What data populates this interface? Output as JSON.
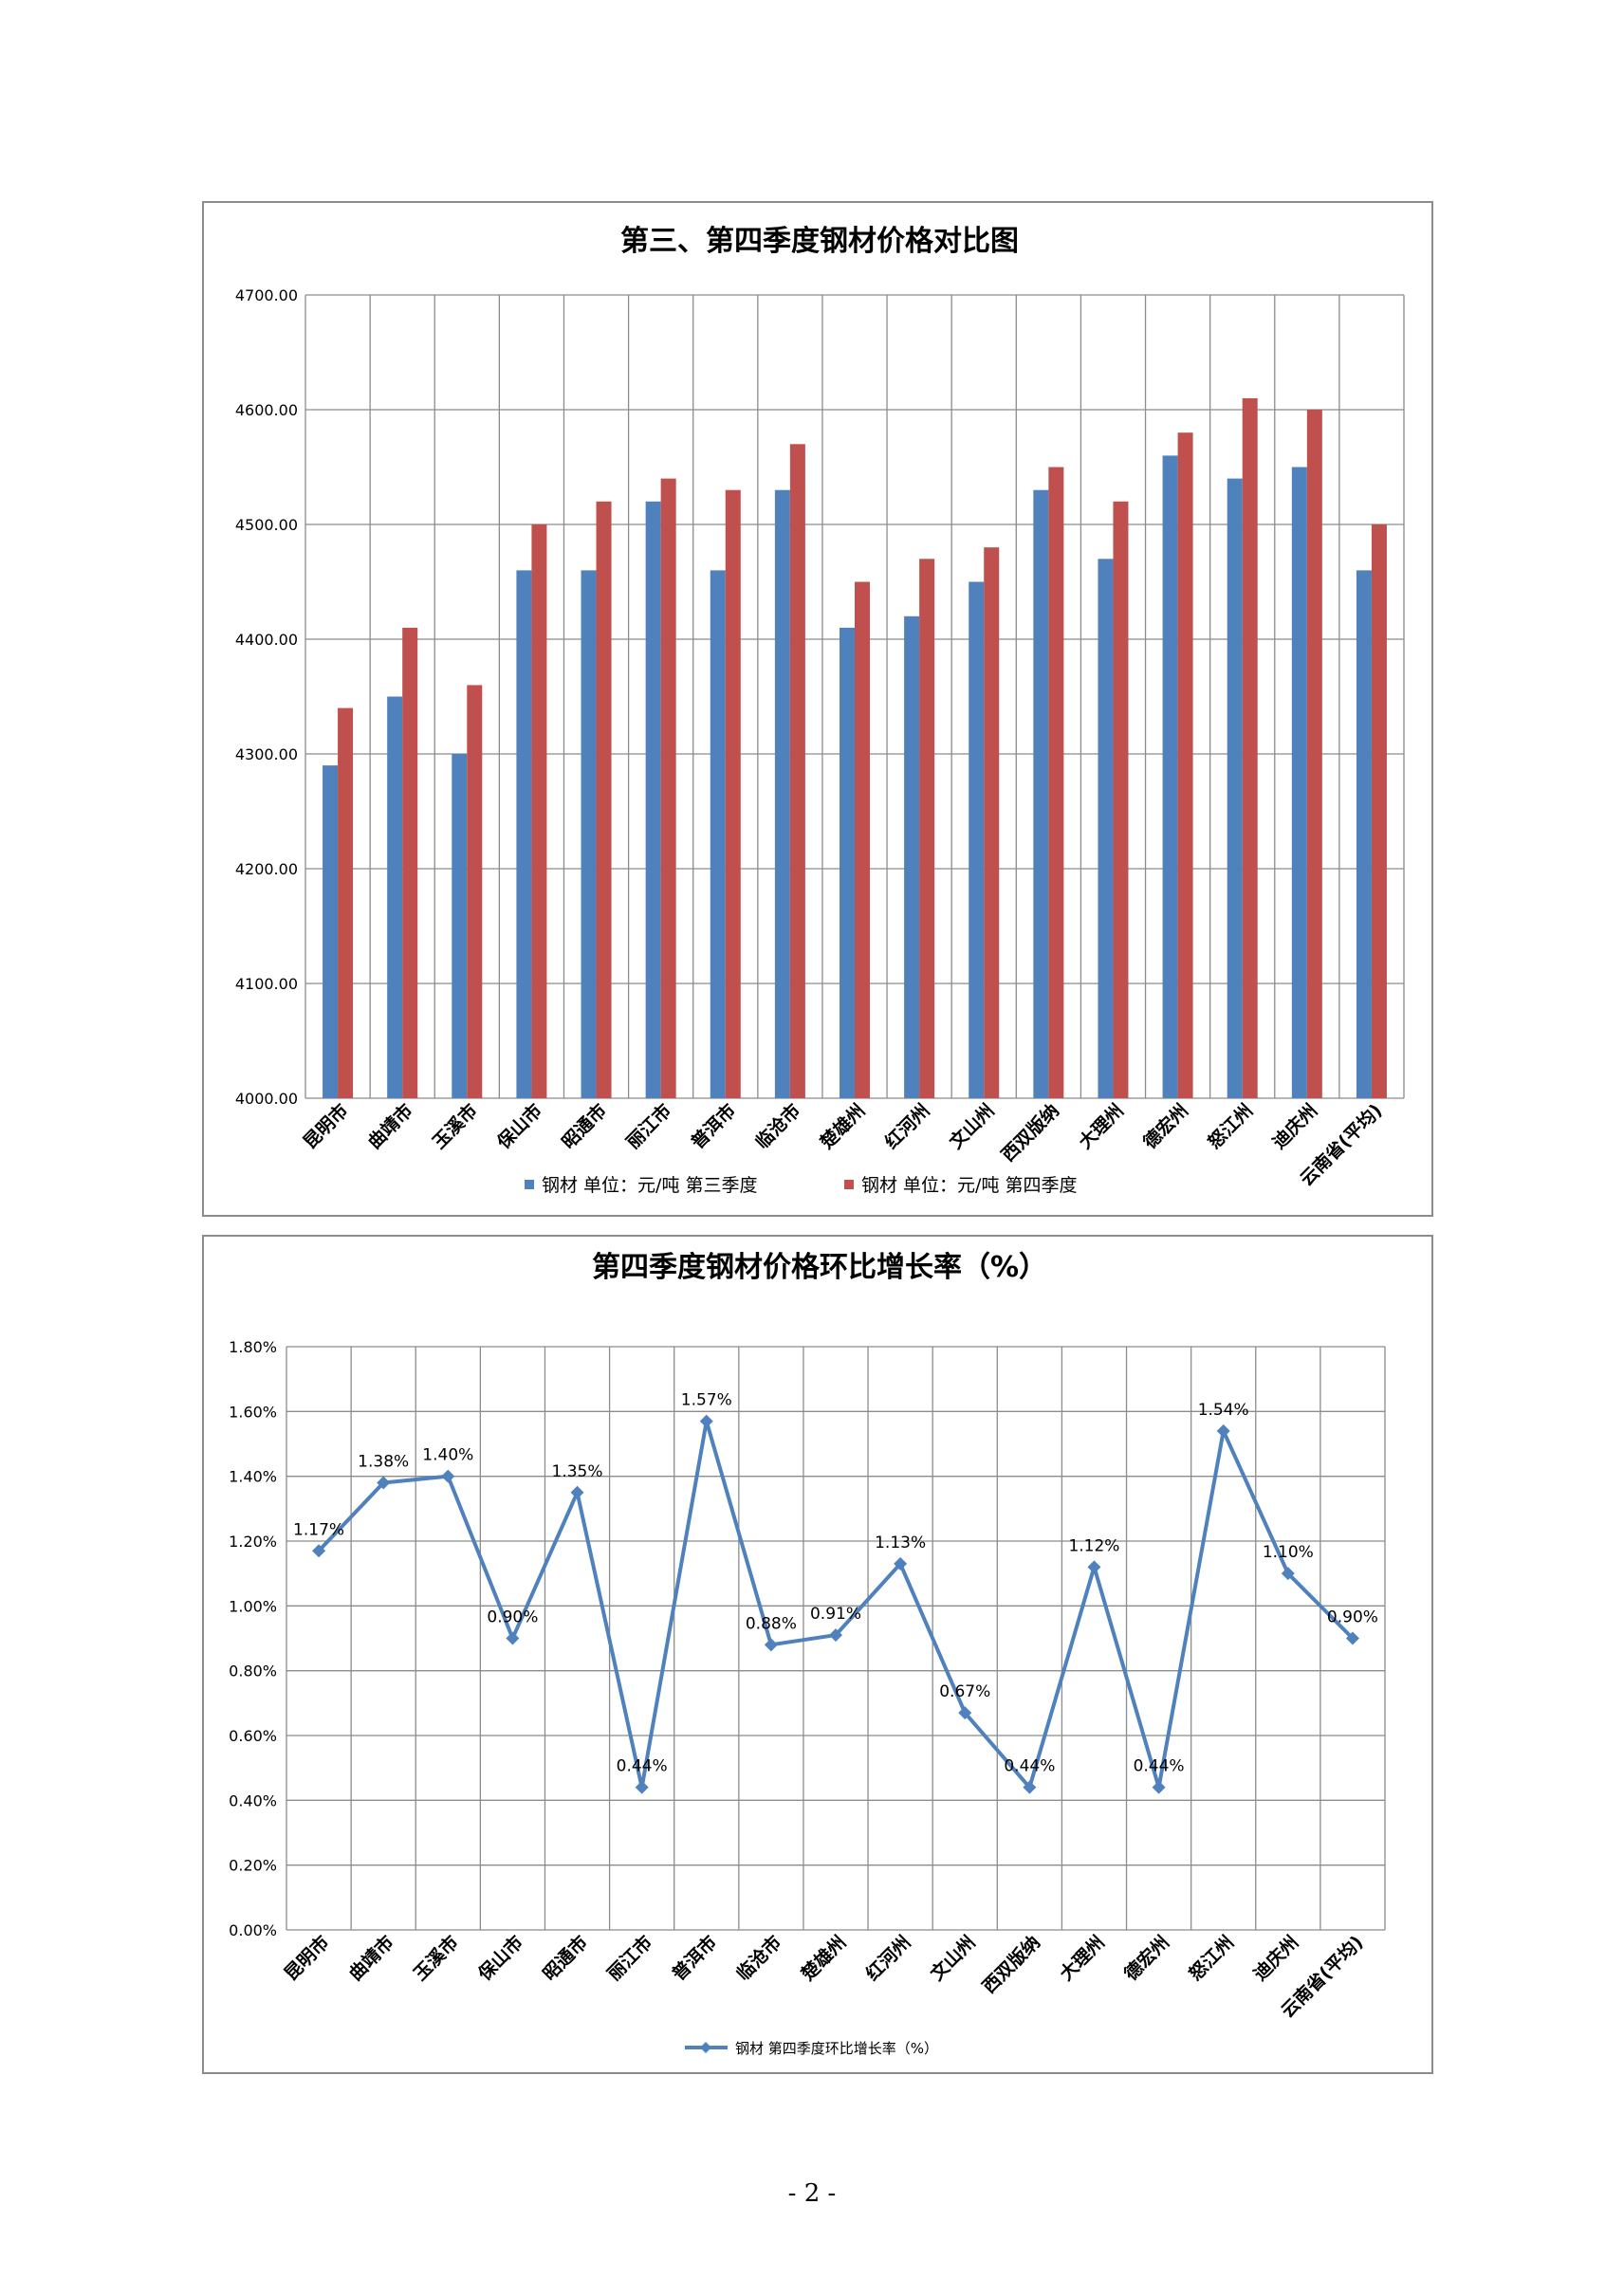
{
  "page": {
    "number": "- 2 -"
  },
  "chart_data": [
    {
      "type": "bar",
      "title": "第三、第四季度钢材价格对比图",
      "categories": [
        "昆明市",
        "曲靖市",
        "玉溪市",
        "保山市",
        "昭通市",
        "丽江市",
        "普洱市",
        "临沧市",
        "楚雄州",
        "红河州",
        "文山州",
        "西双版纳",
        "大理州",
        "德宏州",
        "怒江州",
        "迪庆州",
        "云南省(平均)"
      ],
      "series": [
        {
          "name": "钢材 单位：元/吨 第三季度",
          "color": "#4f81bd",
          "values": [
            4290,
            4350,
            4300,
            4460,
            4460,
            4520,
            4460,
            4530,
            4410,
            4420,
            4450,
            4530,
            4470,
            4560,
            4540,
            4550,
            4460
          ]
        },
        {
          "name": "钢材 单位：元/吨 第四季度",
          "color": "#c0504d",
          "values": [
            4340,
            4410,
            4360,
            4500,
            4520,
            4540,
            4530,
            4570,
            4450,
            4470,
            4480,
            4550,
            4520,
            4580,
            4610,
            4600,
            4500
          ]
        }
      ],
      "yticks": [
        "4000.00",
        "4100.00",
        "4200.00",
        "4300.00",
        "4400.00",
        "4500.00",
        "4600.00",
        "4700.00"
      ],
      "ylim": [
        4000,
        4700
      ],
      "grid": true,
      "legend": "bottom"
    },
    {
      "type": "line",
      "title": "第四季度钢材价格环比增长率（%）",
      "categories": [
        "昆明市",
        "曲靖市",
        "玉溪市",
        "保山市",
        "昭通市",
        "丽江市",
        "普洱市",
        "临沧市",
        "楚雄州",
        "红河州",
        "文山州",
        "西双版纳",
        "大理州",
        "德宏州",
        "怒江州",
        "迪庆州",
        "云南省(平均)"
      ],
      "series": [
        {
          "name": "钢材 第四季度环比增长率（%）",
          "color": "#4f81bd",
          "values": [
            1.17,
            1.38,
            1.4,
            0.9,
            1.35,
            0.44,
            1.57,
            0.88,
            0.91,
            1.13,
            0.67,
            0.44,
            1.12,
            0.44,
            1.54,
            1.1,
            0.9
          ],
          "labels": [
            "1.17%",
            "1.38%",
            "1.40%",
            "0.90%",
            "1.35%",
            "0.44%",
            "1.57%",
            "0.88%",
            "0.91%",
            "1.13%",
            "0.67%",
            "0.44%",
            "1.12%",
            "0.44%",
            "1.54%",
            "1.10%",
            "0.90%"
          ]
        }
      ],
      "yticks": [
        "0.00%",
        "0.20%",
        "0.40%",
        "0.60%",
        "0.80%",
        "1.00%",
        "1.20%",
        "1.40%",
        "1.60%",
        "1.80%"
      ],
      "ylim": [
        0,
        1.8
      ],
      "grid": true,
      "legend": "bottom"
    }
  ]
}
